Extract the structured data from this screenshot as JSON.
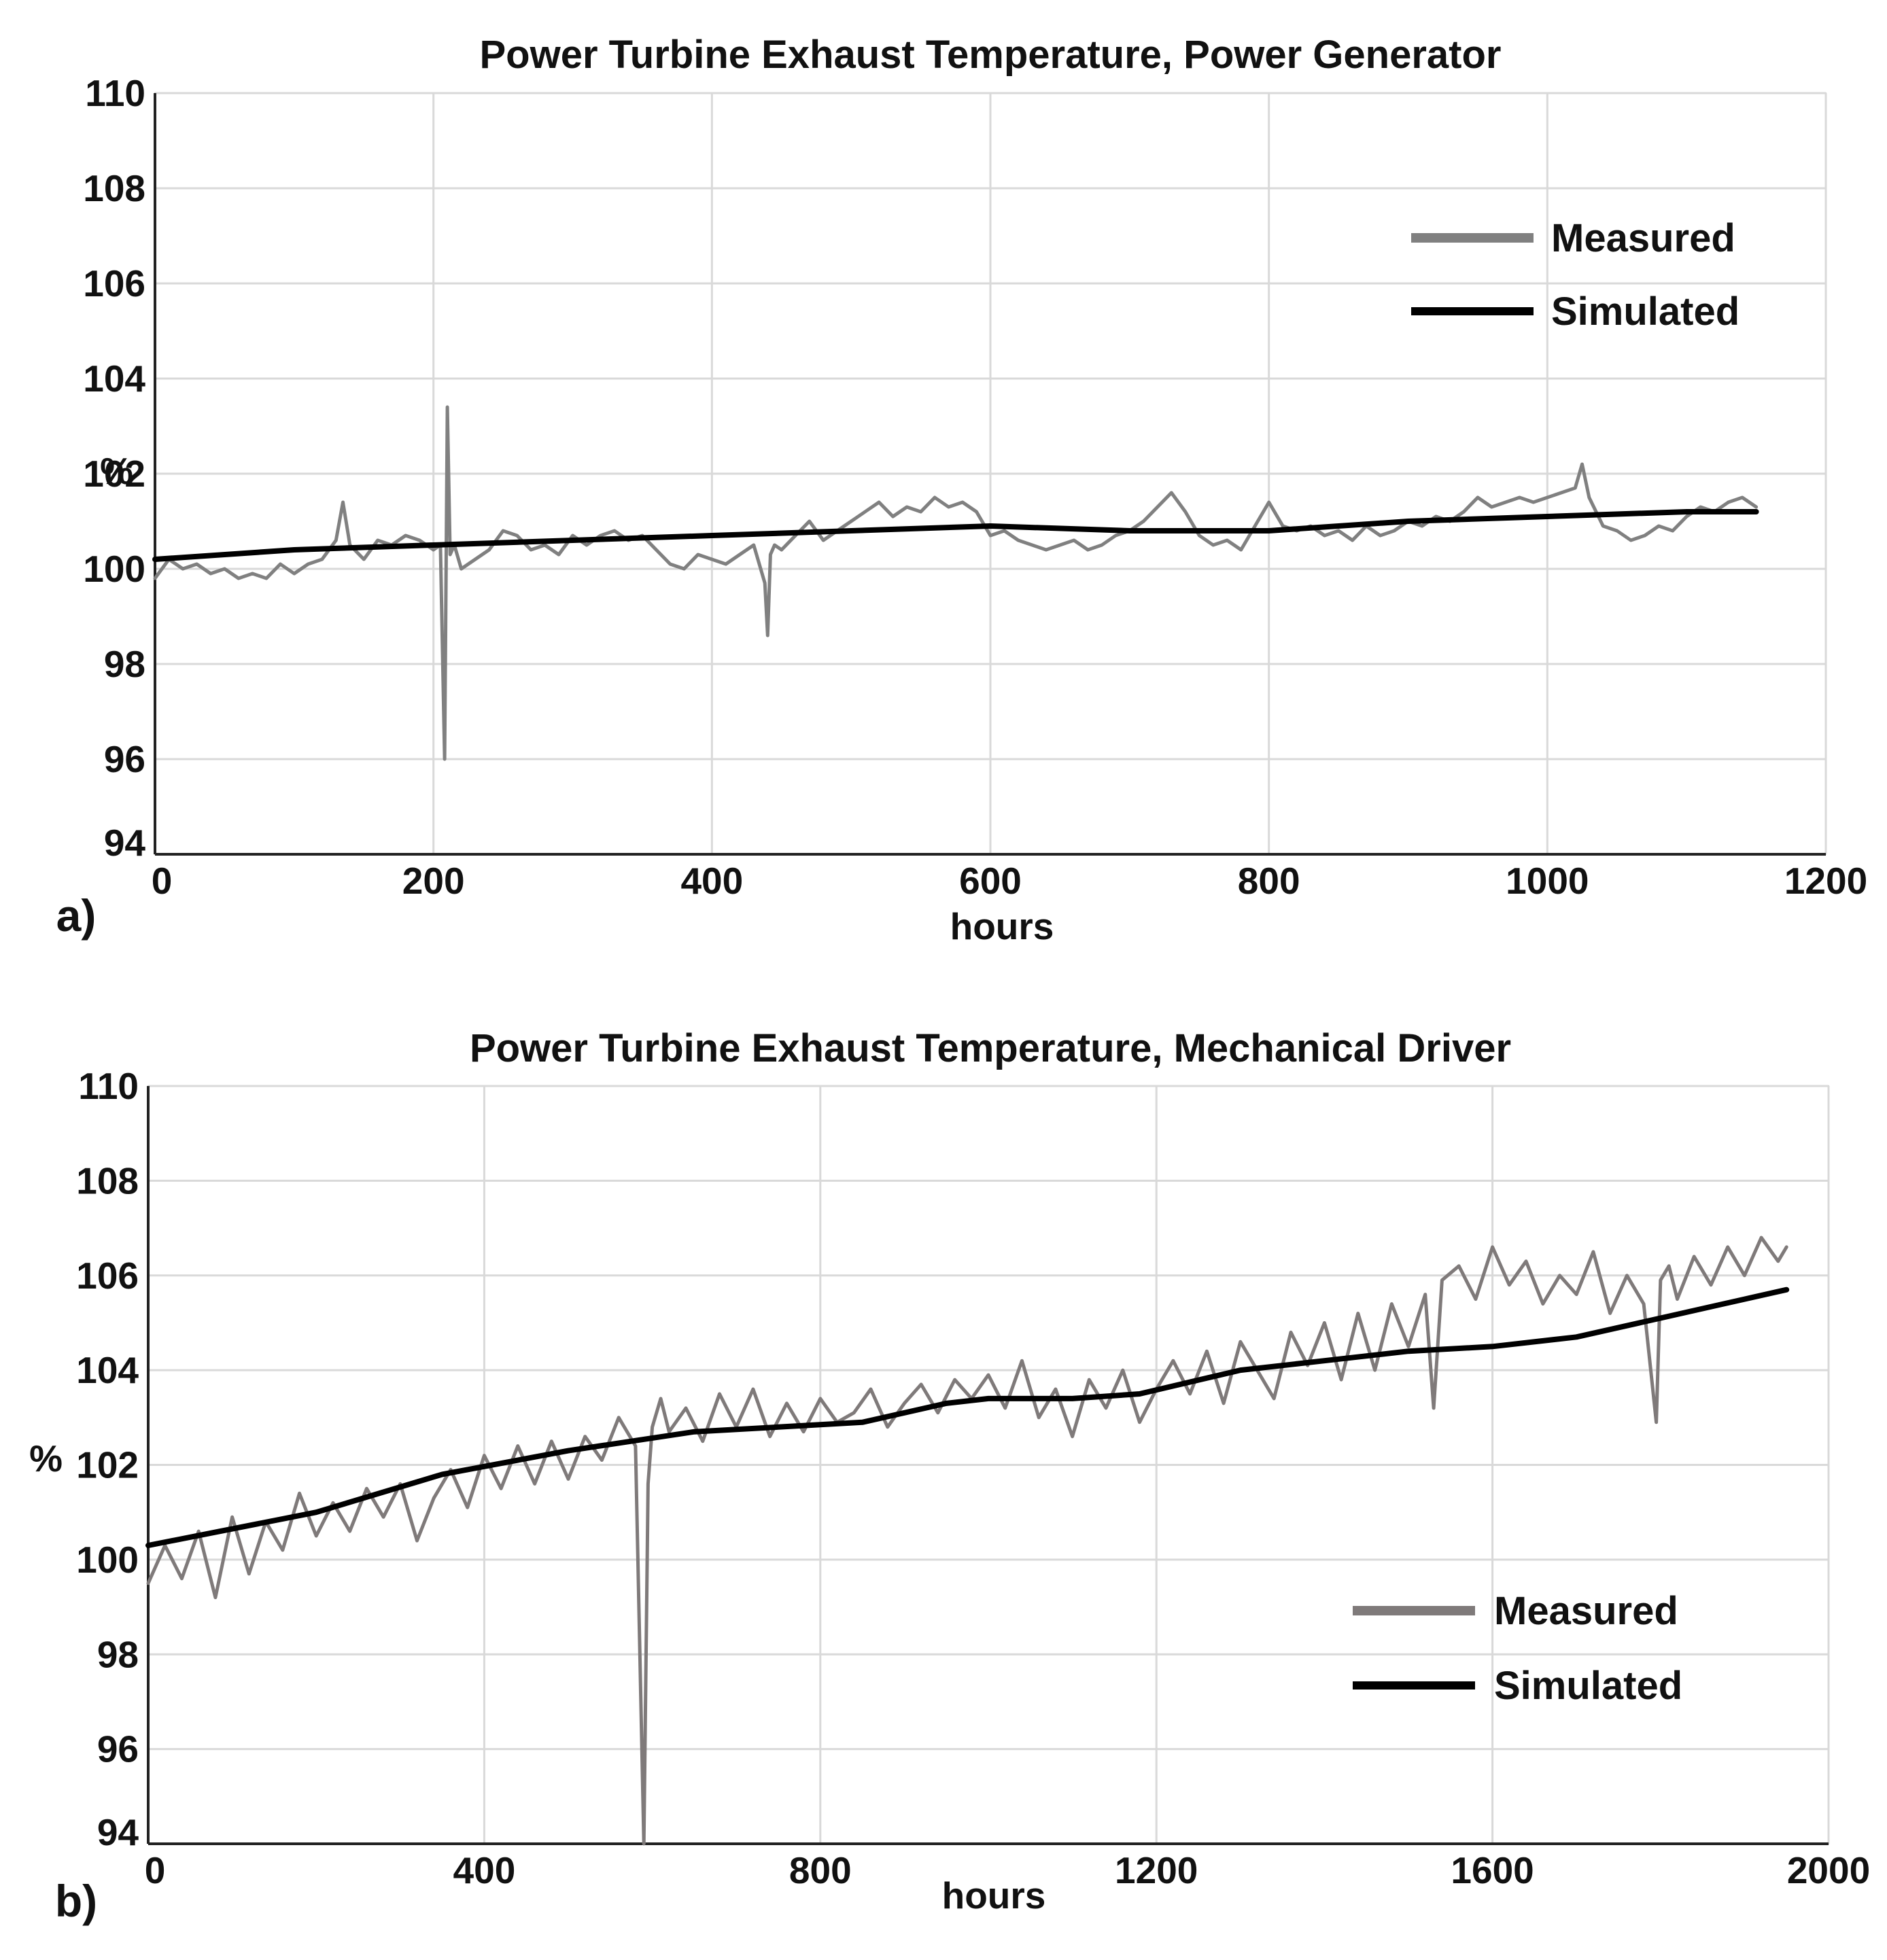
{
  "chart_data": [
    {
      "type": "line",
      "panel_label": "a)",
      "title": "Power Turbine Exhaust Temperature, Power Generator",
      "xlabel": "hours",
      "ylabel": "%",
      "xlim": [
        0,
        1200
      ],
      "ylim": [
        94,
        110
      ],
      "xticks": [
        0,
        200,
        400,
        600,
        800,
        1000,
        1200
      ],
      "yticks": [
        94,
        96,
        98,
        100,
        102,
        104,
        106,
        108,
        110
      ],
      "grid": true,
      "legend_position": "top-right",
      "series": [
        {
          "name": "Measured",
          "color": "#808080",
          "x": [
            0,
            10,
            20,
            30,
            40,
            50,
            60,
            70,
            80,
            90,
            100,
            110,
            120,
            130,
            135,
            140,
            150,
            160,
            170,
            180,
            190,
            200,
            205,
            208,
            210,
            212,
            215,
            220,
            230,
            240,
            250,
            260,
            270,
            280,
            290,
            300,
            310,
            320,
            330,
            340,
            350,
            360,
            370,
            380,
            390,
            400,
            410,
            420,
            430,
            438,
            440,
            442,
            445,
            450,
            460,
            470,
            480,
            490,
            500,
            510,
            520,
            530,
            540,
            550,
            560,
            570,
            580,
            590,
            600,
            610,
            620,
            630,
            640,
            650,
            660,
            670,
            680,
            690,
            700,
            710,
            720,
            730,
            740,
            750,
            760,
            770,
            780,
            790,
            800,
            810,
            820,
            830,
            840,
            850,
            860,
            870,
            880,
            890,
            900,
            910,
            920,
            930,
            940,
            950,
            960,
            970,
            980,
            990,
            1000,
            1010,
            1020,
            1025,
            1030,
            1040,
            1050,
            1060,
            1070,
            1080,
            1090,
            1100,
            1110,
            1120,
            1130,
            1140,
            1150
          ],
          "values": [
            99.8,
            100.2,
            100.0,
            100.1,
            99.9,
            100.0,
            99.8,
            99.9,
            99.8,
            100.1,
            99.9,
            100.1,
            100.2,
            100.6,
            101.4,
            100.5,
            100.2,
            100.6,
            100.5,
            100.7,
            100.6,
            100.4,
            100.5,
            96.0,
            103.4,
            100.3,
            100.5,
            100.0,
            100.2,
            100.4,
            100.8,
            100.7,
            100.4,
            100.5,
            100.3,
            100.7,
            100.5,
            100.7,
            100.8,
            100.6,
            100.7,
            100.4,
            100.1,
            100.0,
            100.3,
            100.2,
            100.1,
            100.3,
            100.5,
            99.7,
            98.6,
            100.3,
            100.5,
            100.4,
            100.7,
            101.0,
            100.6,
            100.8,
            101.0,
            101.2,
            101.4,
            101.1,
            101.3,
            101.2,
            101.5,
            101.3,
            101.4,
            101.2,
            100.7,
            100.8,
            100.6,
            100.5,
            100.4,
            100.5,
            100.6,
            100.4,
            100.5,
            100.7,
            100.8,
            101.0,
            101.3,
            101.6,
            101.2,
            100.7,
            100.5,
            100.6,
            100.4,
            100.9,
            101.4,
            100.9,
            100.8,
            100.9,
            100.7,
            100.8,
            100.6,
            100.9,
            100.7,
            100.8,
            101.0,
            100.9,
            101.1,
            101.0,
            101.2,
            101.5,
            101.3,
            101.4,
            101.5,
            101.4,
            101.5,
            101.6,
            101.7,
            102.2,
            101.5,
            100.9,
            100.8,
            100.6,
            100.7,
            100.9,
            100.8,
            101.1,
            101.3,
            101.2,
            101.4,
            101.5,
            101.3
          ]
        },
        {
          "name": "Simulated",
          "color": "#000000",
          "x": [
            0,
            100,
            200,
            300,
            400,
            500,
            600,
            700,
            800,
            900,
            1000,
            1100,
            1150
          ],
          "values": [
            100.2,
            100.4,
            100.5,
            100.6,
            100.7,
            100.8,
            100.9,
            100.8,
            100.8,
            101.0,
            101.1,
            101.2,
            101.2
          ]
        }
      ]
    },
    {
      "type": "line",
      "panel_label": "b)",
      "title": "Power Turbine Exhaust Temperature, Mechanical Driver",
      "xlabel": "hours",
      "ylabel": "%",
      "xlim": [
        0,
        2000
      ],
      "ylim": [
        94,
        110
      ],
      "xticks": [
        0,
        400,
        800,
        1200,
        1600,
        2000
      ],
      "yticks": [
        94,
        96,
        98,
        100,
        102,
        104,
        106,
        108,
        110
      ],
      "grid": true,
      "legend_position": "bottom-right",
      "series": [
        {
          "name": "Measured",
          "color": "#7f7a7a",
          "x": [
            0,
            20,
            40,
            60,
            80,
            100,
            120,
            140,
            160,
            180,
            200,
            220,
            240,
            260,
            280,
            300,
            320,
            340,
            360,
            380,
            400,
            420,
            440,
            460,
            480,
            500,
            520,
            540,
            560,
            580,
            590,
            595,
            600,
            610,
            620,
            640,
            660,
            680,
            700,
            720,
            740,
            760,
            780,
            800,
            820,
            840,
            860,
            880,
            900,
            920,
            940,
            960,
            980,
            1000,
            1020,
            1040,
            1060,
            1080,
            1100,
            1120,
            1140,
            1160,
            1180,
            1200,
            1220,
            1240,
            1260,
            1280,
            1300,
            1320,
            1340,
            1360,
            1380,
            1400,
            1420,
            1440,
            1460,
            1480,
            1500,
            1520,
            1530,
            1540,
            1560,
            1580,
            1600,
            1620,
            1640,
            1660,
            1680,
            1700,
            1720,
            1740,
            1760,
            1780,
            1795,
            1800,
            1810,
            1820,
            1840,
            1860,
            1880,
            1900,
            1920,
            1940,
            1950
          ],
          "values": [
            99.5,
            100.3,
            99.6,
            100.6,
            99.2,
            100.9,
            99.7,
            100.8,
            100.2,
            101.4,
            100.5,
            101.2,
            100.6,
            101.5,
            100.9,
            101.6,
            100.4,
            101.3,
            101.9,
            101.1,
            102.2,
            101.5,
            102.4,
            101.6,
            102.5,
            101.7,
            102.6,
            102.1,
            103.0,
            102.4,
            94.0,
            101.6,
            102.8,
            103.4,
            102.7,
            103.2,
            102.5,
            103.5,
            102.8,
            103.6,
            102.6,
            103.3,
            102.7,
            103.4,
            102.9,
            103.1,
            103.6,
            102.8,
            103.3,
            103.7,
            103.1,
            103.8,
            103.4,
            103.9,
            103.2,
            104.2,
            103.0,
            103.6,
            102.6,
            103.8,
            103.2,
            104.0,
            102.9,
            103.6,
            104.2,
            103.5,
            104.4,
            103.3,
            104.6,
            104.0,
            103.4,
            104.8,
            104.1,
            105.0,
            103.8,
            105.2,
            104.0,
            105.4,
            104.5,
            105.6,
            103.2,
            105.9,
            106.2,
            105.5,
            106.6,
            105.8,
            106.3,
            105.4,
            106.0,
            105.6,
            106.5,
            105.2,
            106.0,
            105.4,
            102.9,
            105.9,
            106.2,
            105.5,
            106.4,
            105.8,
            106.6,
            106.0,
            106.8,
            106.3,
            106.6
          ]
        },
        {
          "name": "Simulated",
          "color": "#000000",
          "x": [
            0,
            200,
            350,
            500,
            650,
            750,
            850,
            950,
            1000,
            1100,
            1180,
            1300,
            1400,
            1500,
            1600,
            1700,
            1800,
            1900,
            1950
          ],
          "values": [
            100.3,
            101.0,
            101.8,
            102.3,
            102.7,
            102.8,
            102.9,
            103.3,
            103.4,
            103.4,
            103.5,
            104.0,
            104.2,
            104.4,
            104.5,
            104.7,
            105.1,
            105.5,
            105.7
          ]
        }
      ]
    }
  ]
}
